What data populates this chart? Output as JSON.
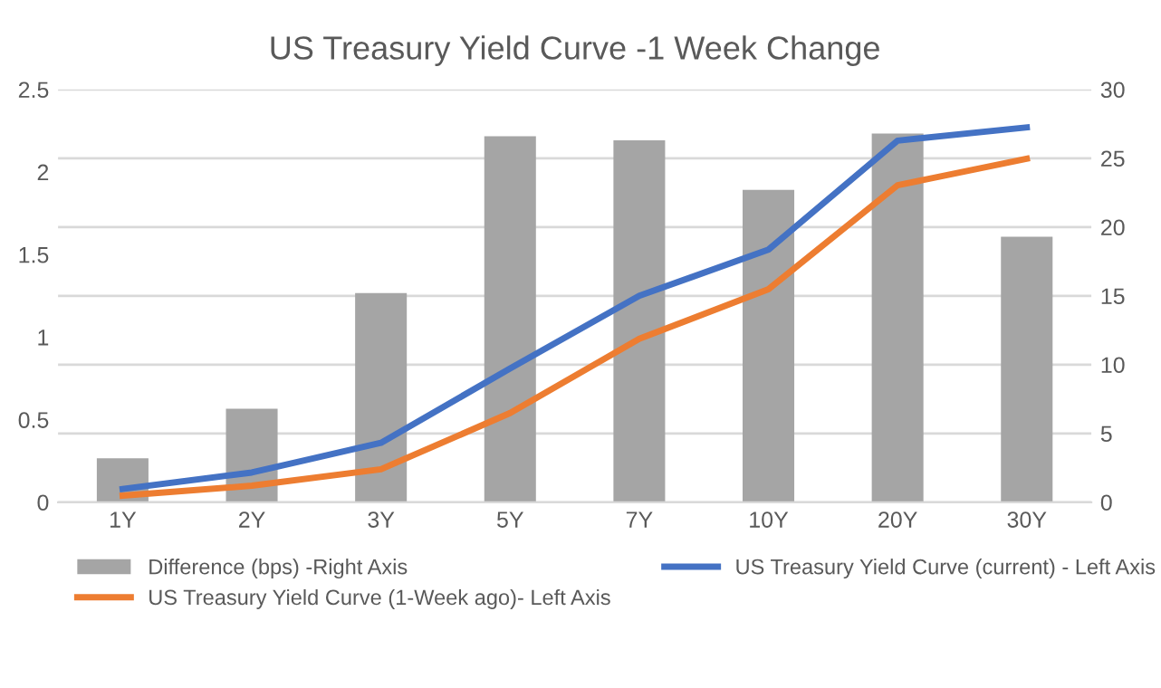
{
  "chart_data": {
    "type": "bar",
    "title": "US Treasury Yield Curve -1 Week Change",
    "categories": [
      "1Y",
      "2Y",
      "3Y",
      "5Y",
      "7Y",
      "10Y",
      "20Y",
      "30Y"
    ],
    "series": [
      {
        "name": "Difference (bps) -Right Axis",
        "axis": "y2",
        "color": "#a5a5a5",
        "values": [
          3.2,
          6.8,
          15.2,
          26.6,
          26.3,
          22.7,
          26.8,
          19.3
        ]
      },
      {
        "name": "US Treasury Yield Curve (current) - Left Axis",
        "type": "line",
        "color": "#4472c4",
        "values": [
          0.08,
          0.18,
          0.36,
          0.81,
          1.25,
          1.53,
          2.19,
          2.27
        ]
      },
      {
        "name": "US Treasury Yield Curve (1-Week ago)- Left Axis",
        "type": "line",
        "color": "#ed7d31",
        "values": [
          0.04,
          0.1,
          0.2,
          0.54,
          0.99,
          1.29,
          1.92,
          2.08
        ]
      }
    ],
    "ylim": [
      0,
      2.5
    ],
    "yticks": [
      0,
      0.5,
      1,
      1.5,
      2,
      2.5
    ],
    "y2lim": [
      0,
      30
    ],
    "y2ticks": [
      0,
      5,
      10,
      15,
      20,
      25,
      30
    ],
    "grid": "y",
    "legend": "bottom",
    "marker": "none",
    "line_style": "solid"
  }
}
